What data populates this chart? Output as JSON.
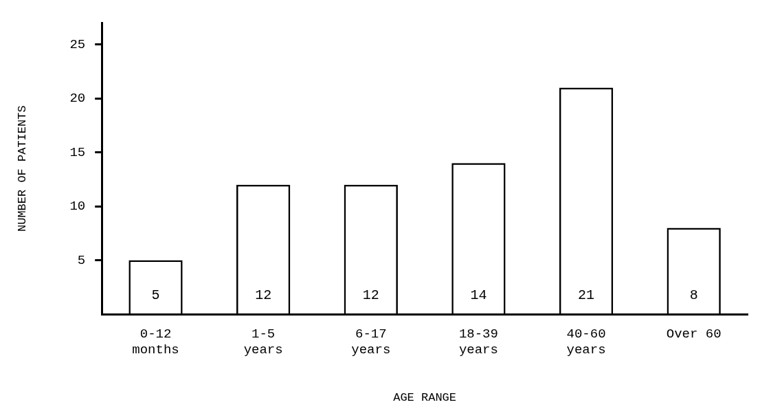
{
  "chart_data": {
    "type": "bar",
    "xlabel": "AGE RANGE",
    "ylabel": "NUMBER OF PATIENTS",
    "categories": [
      "0-12\nmonths",
      "1-5\nyears",
      "6-17\nyears",
      "18-39\nyears",
      "40-60\nyears",
      "Over 60"
    ],
    "values": [
      5,
      12,
      12,
      14,
      21,
      8
    ],
    "color": "#000000",
    "ylim": [
      0,
      27
    ],
    "yticks": [
      5,
      10,
      15,
      20,
      25
    ],
    "grid": false,
    "legend": false,
    "data_labels": true
  }
}
